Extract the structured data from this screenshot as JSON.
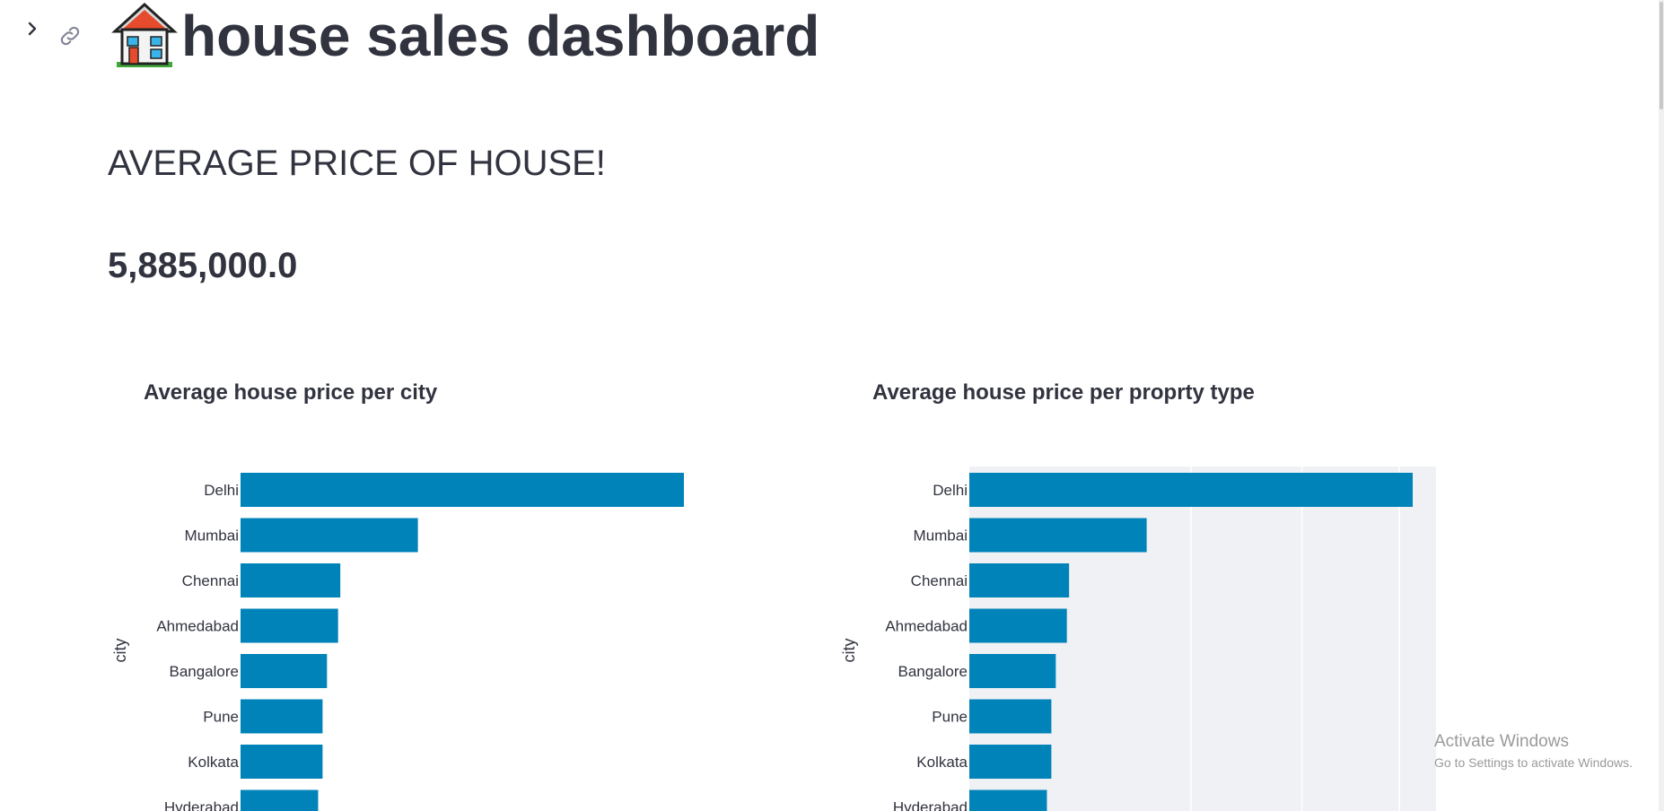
{
  "header": {
    "title": "house sales dashboard",
    "icon": "house-icon"
  },
  "subheader": "AVERAGE PRICE OF HOUSE!",
  "metric": {
    "value": "5,885,000.0"
  },
  "colors": {
    "bar": "#0083b8",
    "text": "#31333f",
    "plot_bg_right": "#eff1f5"
  },
  "chart_data": [
    {
      "type": "bar",
      "orientation": "horizontal",
      "title": "Average house price per city",
      "ylabel": "city",
      "categories": [
        "Delhi",
        "Mumbai",
        "Chennai",
        "Ahmedabad",
        "Bangalore",
        "Pune",
        "Kolkata",
        "Hyderabad"
      ],
      "values": [
        100,
        40,
        22.5,
        22,
        19.5,
        18.5,
        18.5,
        17.5
      ],
      "grid": false
    },
    {
      "type": "bar",
      "orientation": "horizontal",
      "title": "Average house price per proprty type",
      "ylabel": "city",
      "categories": [
        "Delhi",
        "Mumbai",
        "Chennai",
        "Ahmedabad",
        "Bangalore",
        "Pune",
        "Kolkata",
        "Hyderabad"
      ],
      "values": [
        100,
        40,
        22.5,
        22,
        19.5,
        18.5,
        18.5,
        17.5
      ],
      "grid": true
    }
  ],
  "watermark": {
    "title": "Activate Windows",
    "subtitle": "Go to Settings to activate Windows."
  }
}
